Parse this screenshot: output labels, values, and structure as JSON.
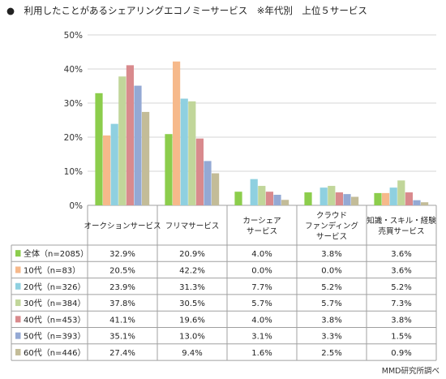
{
  "title": "●　利用したことがあるシェアリングエコノミーサービス　※年代別　上位５サービス",
  "source": "MMD研究所調べ",
  "colors": {
    "全体": "#8ccd4c",
    "10代": "#f6b98b",
    "20代": "#8fd0e0",
    "30代": "#c1d69a",
    "40代": "#d98a8d",
    "50代": "#94a9d4",
    "60代": "#c3bc98",
    "grid": "#d6d6d6",
    "axis": "#a0a0a0"
  },
  "chart_data": {
    "type": "bar",
    "ylim": [
      0,
      50
    ],
    "yticks": [
      "0%",
      "10%",
      "20%",
      "30%",
      "40%",
      "50%"
    ],
    "grid": true,
    "categories": [
      [
        "オークションサービス"
      ],
      [
        "フリマサービス"
      ],
      [
        "カーシェア",
        "サービス"
      ],
      [
        "クラウド",
        "ファンディング",
        "サービス"
      ],
      [
        "知識・スキル・経験",
        "売買サービス"
      ]
    ],
    "series": [
      {
        "name": "全体（n=2085）",
        "key": "全体",
        "values": [
          32.9,
          20.9,
          4.0,
          3.8,
          3.6
        ],
        "labels": [
          "32.9%",
          "20.9%",
          "4.0%",
          "3.8%",
          "3.6%"
        ]
      },
      {
        "name": "10代（n=83）",
        "key": "10代",
        "values": [
          20.5,
          42.2,
          0.0,
          0.0,
          3.6
        ],
        "labels": [
          "20.5%",
          "42.2%",
          "0.0%",
          "0.0%",
          "3.6%"
        ]
      },
      {
        "name": "20代（n=326）",
        "key": "20代",
        "values": [
          23.9,
          31.3,
          7.7,
          5.2,
          5.2
        ],
        "labels": [
          "23.9%",
          "31.3%",
          "7.7%",
          "5.2%",
          "5.2%"
        ]
      },
      {
        "name": "30代（n=384）",
        "key": "30代",
        "values": [
          37.8,
          30.5,
          5.7,
          5.7,
          7.3
        ],
        "labels": [
          "37.8%",
          "30.5%",
          "5.7%",
          "5.7%",
          "7.3%"
        ]
      },
      {
        "name": "40代（n=453）",
        "key": "40代",
        "values": [
          41.1,
          19.6,
          4.0,
          3.8,
          3.8
        ],
        "labels": [
          "41.1%",
          "19.6%",
          "4.0%",
          "3.8%",
          "3.8%"
        ]
      },
      {
        "name": "50代（n=393）",
        "key": "50代",
        "values": [
          35.1,
          13.0,
          3.1,
          3.3,
          1.5
        ],
        "labels": [
          "35.1%",
          "13.0%",
          "3.1%",
          "3.3%",
          "1.5%"
        ]
      },
      {
        "name": "60代（n=446）",
        "key": "60代",
        "values": [
          27.4,
          9.4,
          1.6,
          2.5,
          0.9
        ],
        "labels": [
          "27.4%",
          "9.4%",
          "1.6%",
          "2.5%",
          "0.9%"
        ]
      }
    ]
  }
}
